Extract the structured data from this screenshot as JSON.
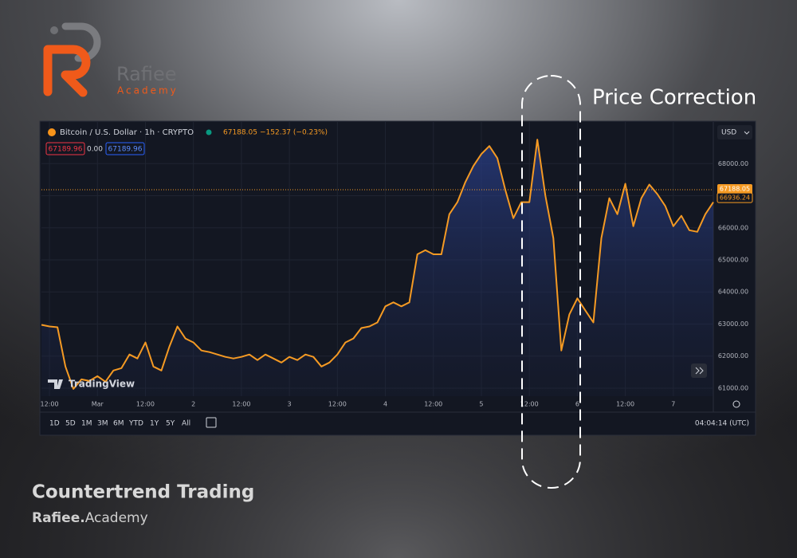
{
  "brand": {
    "logo_name": "Rafiee",
    "logo_sub": "Academy"
  },
  "annotation": "Price Correction",
  "footer": {
    "title": "Countertrend Trading",
    "site_bold": "Rafiee.",
    "site_rest": "Academy"
  },
  "toolbar": {
    "symbol": "Bitcoin / U.S. Dollar · 1h · CRYPTO",
    "last": "67188.05",
    "change": "−152.37 (−0.23%)",
    "sell": "67189.96",
    "spread": "0.00",
    "buy": "67189.96",
    "currency": "USD",
    "watermark": "TradingView",
    "timeframes": [
      "1D",
      "5D",
      "1M",
      "3M",
      "6M",
      "YTD",
      "1Y",
      "5Y",
      "All"
    ],
    "clock": "04:04:14 (UTC)"
  },
  "chart_data": {
    "type": "line",
    "color": "#f59a23",
    "values": [
      62975,
      62925,
      62900,
      61675,
      60975,
      61275,
      61225,
      61375,
      61200,
      61550,
      61625,
      62050,
      61925,
      62425,
      61675,
      61550,
      62300,
      62925,
      62550,
      62425,
      62175,
      62125,
      62050,
      61975,
      61925,
      61975,
      62050,
      61875,
      62050,
      61925,
      61800,
      61975,
      61875,
      62050,
      61975,
      61675,
      61800,
      62050,
      62425,
      62550,
      62875,
      62925,
      63050,
      63550,
      63675,
      63550,
      63675,
      65175,
      65300,
      65175,
      65175,
      66425,
      66800,
      67425,
      67925,
      68300,
      68550,
      68175,
      67175,
      66300,
      66800,
      66800,
      68750,
      67000,
      65675,
      62175,
      63300,
      63800,
      63425,
      63050,
      65675,
      66925,
      66425,
      67375,
      66050,
      66925,
      67350,
      67050,
      66675,
      66050,
      66375,
      65925,
      65875,
      66425,
      66800
    ],
    "xlim": [
      0,
      84
    ],
    "xticks": [
      {
        "value": 1,
        "label": "12:00"
      },
      {
        "value": 7,
        "label": "Mar"
      },
      {
        "value": 13,
        "label": "12:00"
      },
      {
        "value": 19,
        "label": "2"
      },
      {
        "value": 25,
        "label": "12:00"
      },
      {
        "value": 31,
        "label": "3"
      },
      {
        "value": 37,
        "label": "12:00"
      },
      {
        "value": 43,
        "label": "4"
      },
      {
        "value": 49,
        "label": "12:00"
      },
      {
        "value": 55,
        "label": "5"
      },
      {
        "value": 61,
        "label": "12:00"
      },
      {
        "value": 67,
        "label": "6"
      },
      {
        "value": 73,
        "label": "12:00"
      },
      {
        "value": 79,
        "label": "7"
      }
    ],
    "ylim": [
      60750,
      69300
    ],
    "yticks": [
      {
        "value": 61000,
        "label": "61000.00"
      },
      {
        "value": 62000,
        "label": "62000.00"
      },
      {
        "value": 63000,
        "label": "63000.00"
      },
      {
        "value": 64000,
        "label": "64000.00"
      },
      {
        "value": 65000,
        "label": "65000.00"
      },
      {
        "value": 66000,
        "label": "66000.00"
      },
      {
        "value": 67000,
        "label": "67000.00"
      },
      {
        "value": 68000,
        "label": "68000.00"
      }
    ],
    "grid": true,
    "last_price": 67188.05,
    "countdown": "55:45",
    "bid_price": 66936.24
  }
}
